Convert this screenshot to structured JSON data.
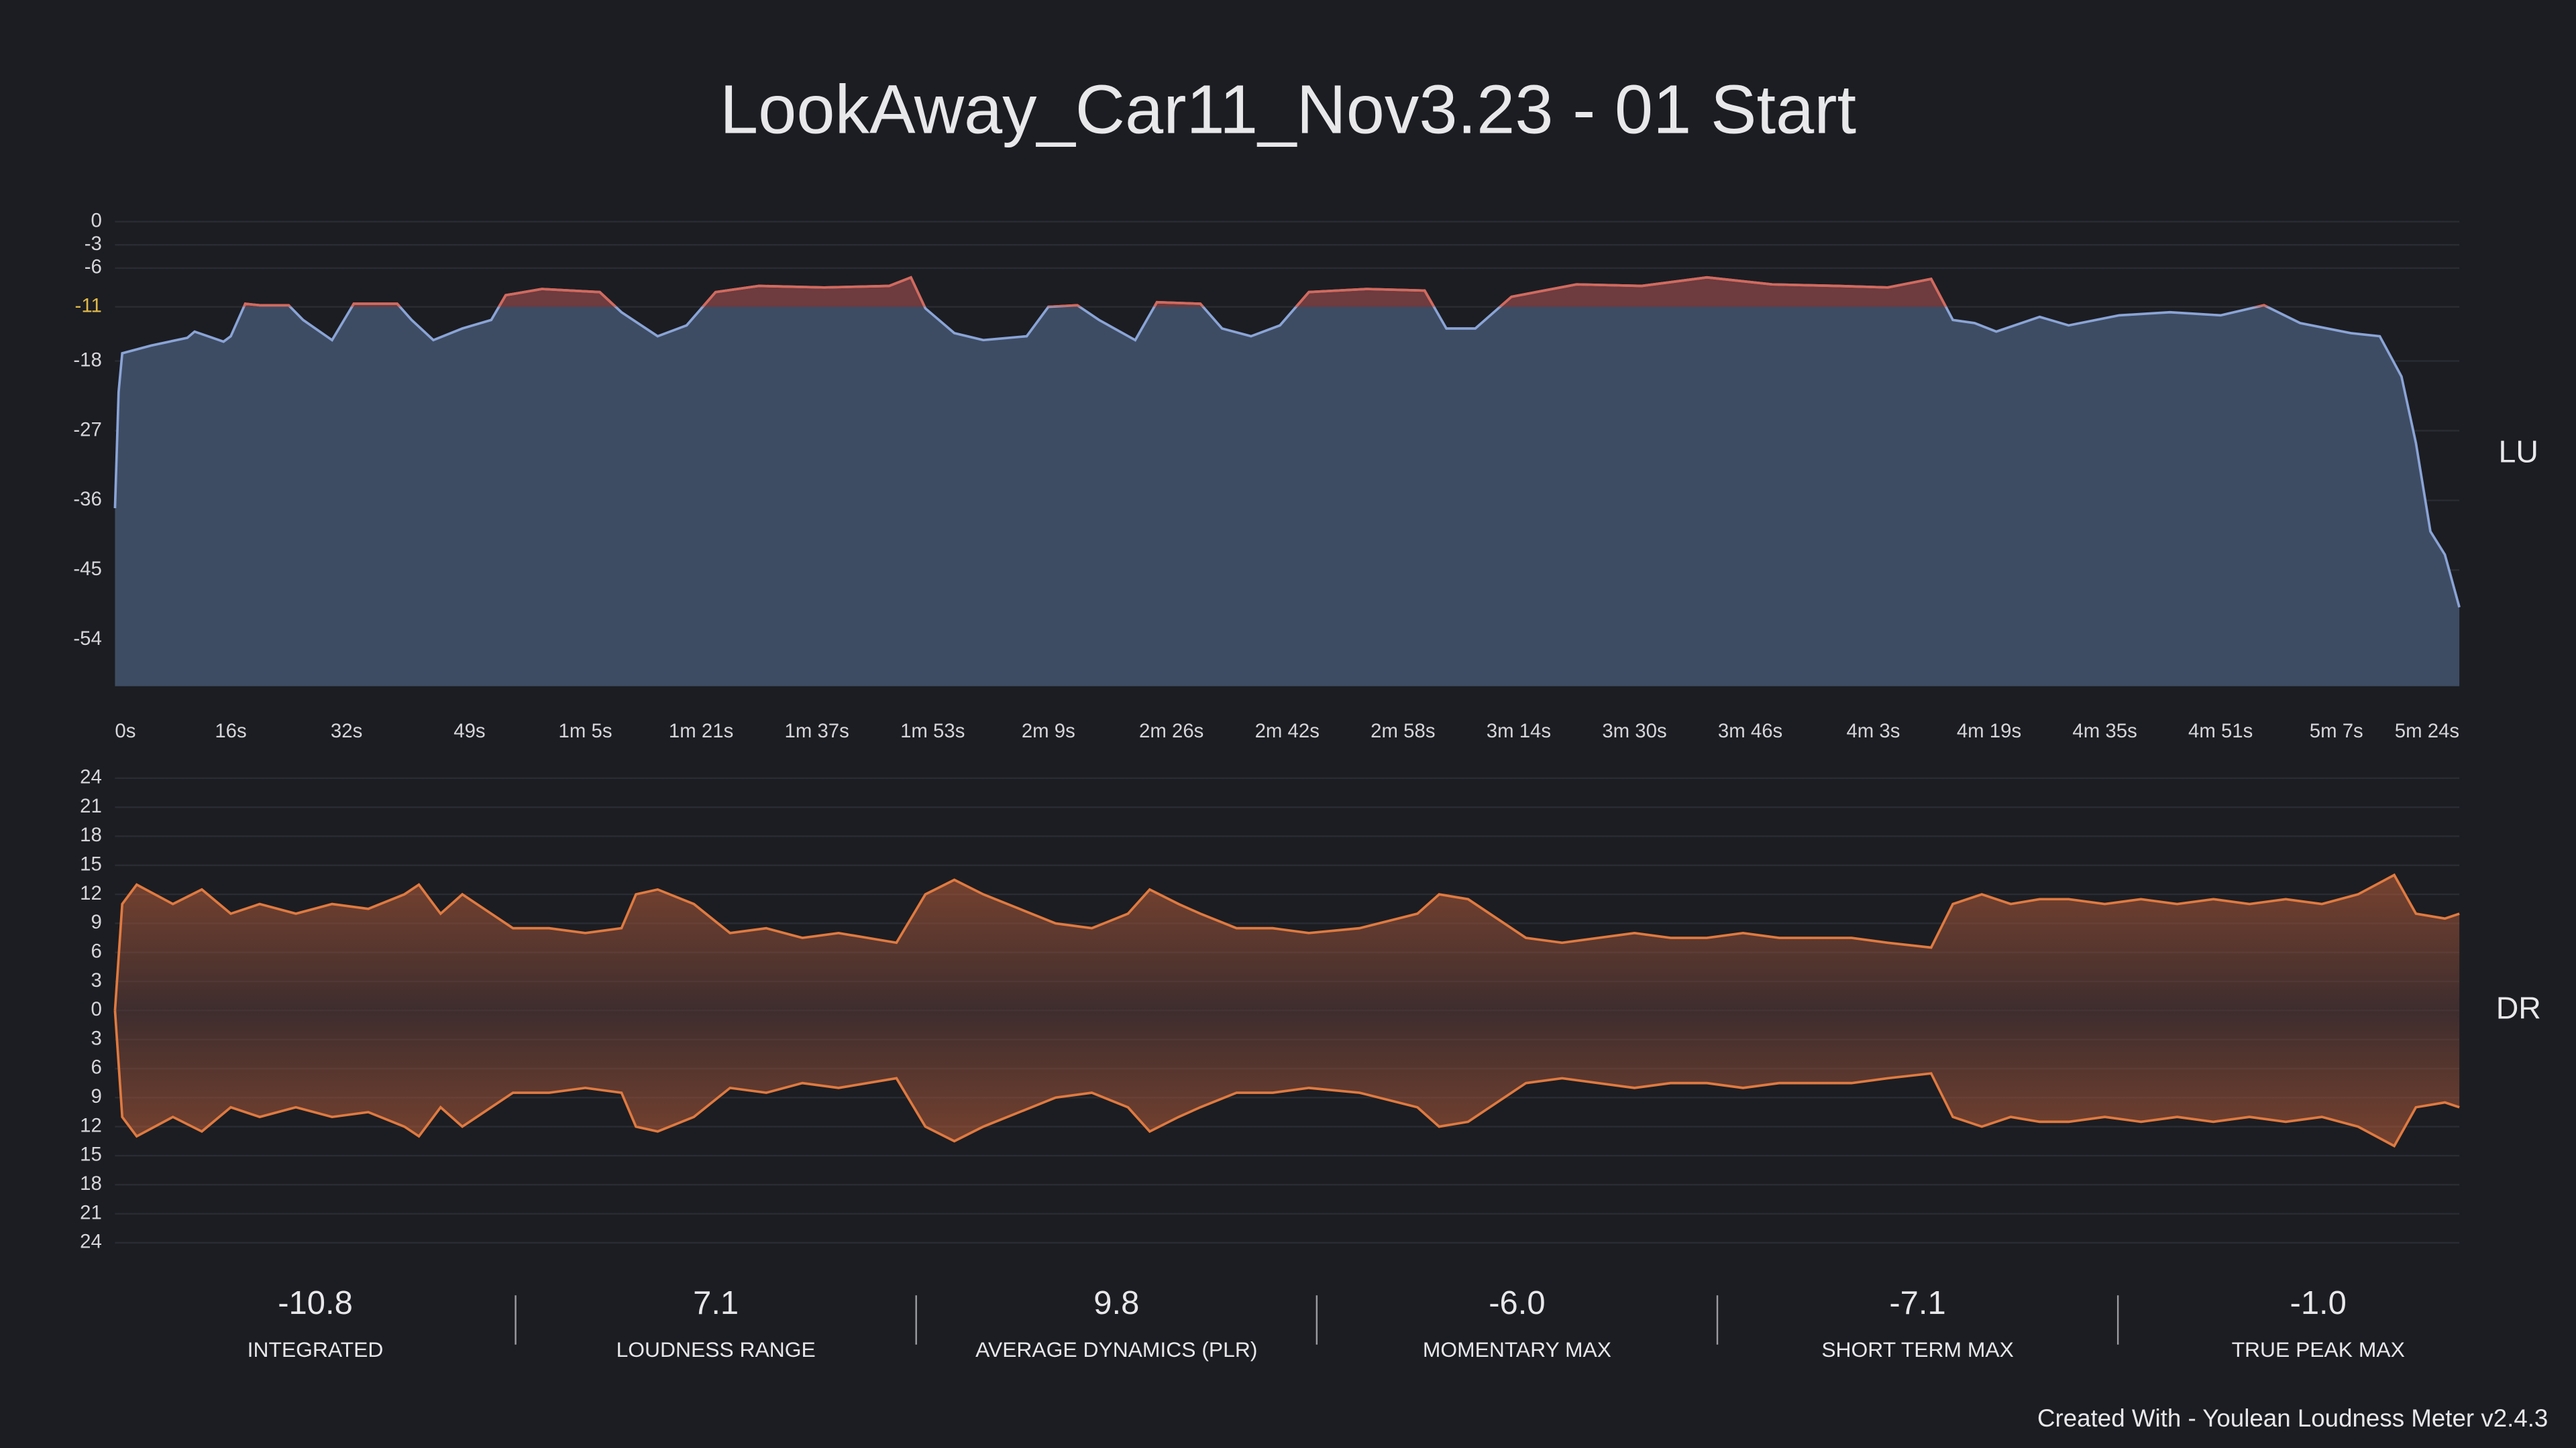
{
  "title": "LookAway_Car11_Nov3.23 - 01 Start",
  "chart_data": [
    {
      "type": "area",
      "side_label": "LU",
      "target": -11,
      "x": [
        0,
        0.5,
        1,
        5,
        10,
        11,
        15,
        16,
        18,
        20,
        24,
        26,
        30,
        33,
        39,
        41,
        44,
        48,
        52,
        54,
        59,
        67,
        70,
        75,
        79,
        83,
        89,
        98,
        107,
        110,
        112,
        116,
        120,
        126,
        129,
        133,
        136,
        141,
        144,
        150,
        153,
        157,
        161,
        165,
        173,
        181,
        184,
        188,
        193,
        202,
        211,
        220,
        229,
        238,
        245,
        251,
        254,
        257,
        260,
        266,
        270,
        277,
        284,
        291,
        297,
        302,
        309,
        313,
        316,
        318,
        320,
        322,
        324
      ],
      "values": [
        -37,
        -22,
        -17,
        -16,
        -15,
        -14.2,
        -15.5,
        -14.8,
        -10.6,
        -10.8,
        -10.8,
        -12.7,
        -15.3,
        -10.6,
        -10.6,
        -12.7,
        -15.3,
        -13.8,
        -12.7,
        -9.5,
        -8.7,
        -9.1,
        -11.7,
        -14.8,
        -13.4,
        -9.1,
        -8.3,
        -8.5,
        -8.3,
        -7.2,
        -11.2,
        -14.4,
        -15.3,
        -14.8,
        -11,
        -10.8,
        -12.7,
        -15.3,
        -10.4,
        -10.6,
        -13.8,
        -14.8,
        -13.4,
        -9.1,
        -8.7,
        -8.9,
        -13.8,
        -13.8,
        -9.7,
        -8.1,
        -8.3,
        -7.2,
        -8.1,
        -8.3,
        -8.5,
        -7.4,
        -12.7,
        -13.1,
        -14.2,
        -12.3,
        -13.4,
        -12.1,
        -11.7,
        -12.1,
        -10.8,
        -13.1,
        -14.4,
        -14.8,
        -20,
        -28.6,
        -40,
        -43,
        -49.8
      ],
      "xlim": [
        0,
        324
      ],
      "xticks": [
        {
          "value": 0,
          "label": "0s"
        },
        {
          "value": 16,
          "label": "16s"
        },
        {
          "value": 32,
          "label": "32s"
        },
        {
          "value": 49,
          "label": "49s"
        },
        {
          "value": 65,
          "label": "1m 5s"
        },
        {
          "value": 81,
          "label": "1m 21s"
        },
        {
          "value": 97,
          "label": "1m 37s"
        },
        {
          "value": 113,
          "label": "1m 53s"
        },
        {
          "value": 129,
          "label": "2m 9s"
        },
        {
          "value": 146,
          "label": "2m 26s"
        },
        {
          "value": 162,
          "label": "2m 42s"
        },
        {
          "value": 178,
          "label": "2m 58s"
        },
        {
          "value": 194,
          "label": "3m 14s"
        },
        {
          "value": 210,
          "label": "3m 30s"
        },
        {
          "value": 226,
          "label": "3m 46s"
        },
        {
          "value": 243,
          "label": "4m 3s"
        },
        {
          "value": 259,
          "label": "4m 19s"
        },
        {
          "value": 275,
          "label": "4m 35s"
        },
        {
          "value": 291,
          "label": "4m 51s"
        },
        {
          "value": 307,
          "label": "5m 7s"
        },
        {
          "value": 324,
          "label": "5m 24s"
        }
      ],
      "ylim": [
        -60,
        0
      ],
      "yticks": [
        0,
        -3,
        -6,
        -11,
        -18,
        -27,
        -36,
        -45,
        -54
      ],
      "color": "#8aa4d6",
      "fill": "#3e4c63",
      "over_color": "#d4695c",
      "over_fill": "#6e3b3e",
      "grid": true
    },
    {
      "type": "mirror",
      "side_label": "DR",
      "x": [
        0,
        1,
        3,
        8,
        12,
        16,
        20,
        25,
        30,
        35,
        40,
        42,
        45,
        48,
        50,
        55,
        60,
        65,
        70,
        72,
        75,
        80,
        85,
        90,
        95,
        100,
        108,
        112,
        116,
        120,
        125,
        130,
        135,
        140,
        143,
        147,
        150,
        155,
        160,
        165,
        172,
        180,
        183,
        187,
        190,
        195,
        200,
        205,
        210,
        215,
        220,
        225,
        230,
        240,
        245,
        251,
        254,
        258,
        262,
        266,
        270,
        275,
        280,
        285,
        290,
        295,
        300,
        305,
        310,
        315,
        318,
        322,
        324
      ],
      "values": [
        0,
        11,
        13,
        11,
        12.5,
        10,
        11,
        10,
        11,
        10.5,
        12,
        13,
        10,
        12,
        11,
        8.5,
        8.5,
        8,
        8.5,
        12,
        12.5,
        11,
        8,
        8.5,
        7.5,
        8,
        7,
        12,
        13.5,
        12,
        10.5,
        9,
        8.5,
        10,
        12.5,
        11,
        10,
        8.5,
        8.5,
        8,
        8.5,
        10,
        12,
        11.5,
        10,
        7.5,
        7,
        7.5,
        8,
        7.5,
        7.5,
        8,
        7.5,
        7.5,
        7,
        6.5,
        11,
        12,
        11,
        11.5,
        11.5,
        11,
        11.5,
        11,
        11.5,
        11,
        11.5,
        11,
        12,
        14,
        10,
        9.5,
        10
      ],
      "xlim": [
        0,
        324
      ],
      "ylim": [
        -24,
        24
      ],
      "yticks": [
        24,
        21,
        18,
        15,
        12,
        9,
        6,
        3,
        0,
        {
          "value": -3,
          "label": "3"
        },
        {
          "value": -6,
          "label": "6"
        },
        {
          "value": -9,
          "label": "9"
        },
        {
          "value": -12,
          "label": "12"
        },
        {
          "value": -15,
          "label": "15"
        },
        {
          "value": -18,
          "label": "18"
        },
        {
          "value": -21,
          "label": "21"
        },
        {
          "value": -24,
          "label": "24"
        }
      ],
      "color": "#e07a40",
      "fill": "#7a3f33",
      "grid": true
    }
  ],
  "stats": [
    {
      "value": "-10.8",
      "label": "INTEGRATED"
    },
    {
      "value": "7.1",
      "label": "LOUDNESS RANGE"
    },
    {
      "value": "9.8",
      "label": "AVERAGE DYNAMICS (PLR)"
    },
    {
      "value": "-6.0",
      "label": "MOMENTARY MAX"
    },
    {
      "value": "-7.1",
      "label": "SHORT TERM MAX"
    },
    {
      "value": "-1.0",
      "label": "TRUE PEAK MAX"
    }
  ],
  "footer": "Created With - Youlean Loudness Meter v2.4.3"
}
